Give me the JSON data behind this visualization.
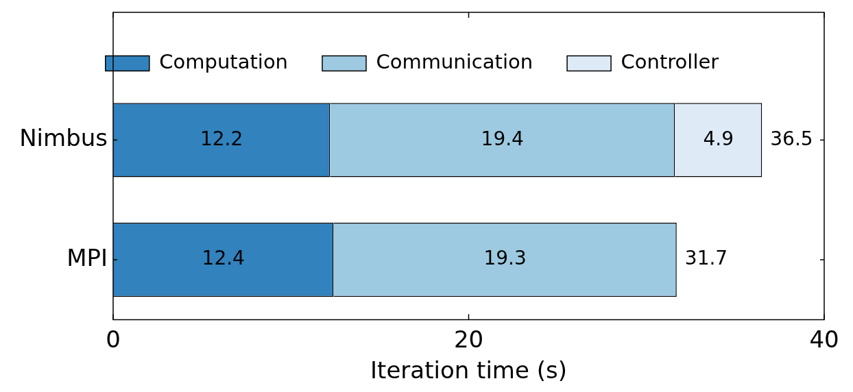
{
  "chart_data": {
    "type": "bar",
    "orientation": "horizontal",
    "stacked": true,
    "categories": [
      "Nimbus",
      "MPI"
    ],
    "series": [
      {
        "name": "Computation",
        "color": "#3182bd",
        "values": [
          12.2,
          12.4
        ]
      },
      {
        "name": "Communication",
        "color": "#9ecae1",
        "values": [
          19.4,
          19.3
        ]
      },
      {
        "name": "Controller",
        "color": "#deebf7",
        "values": [
          4.9,
          null
        ]
      }
    ],
    "xlabel": "Iteration time (s)",
    "xlim": [
      0,
      40
    ],
    "xticks": [
      0,
      20,
      40
    ],
    "data_labels": true,
    "totals": [
      "36.5",
      "31.7"
    ],
    "legend": "top",
    "grid": false
  }
}
